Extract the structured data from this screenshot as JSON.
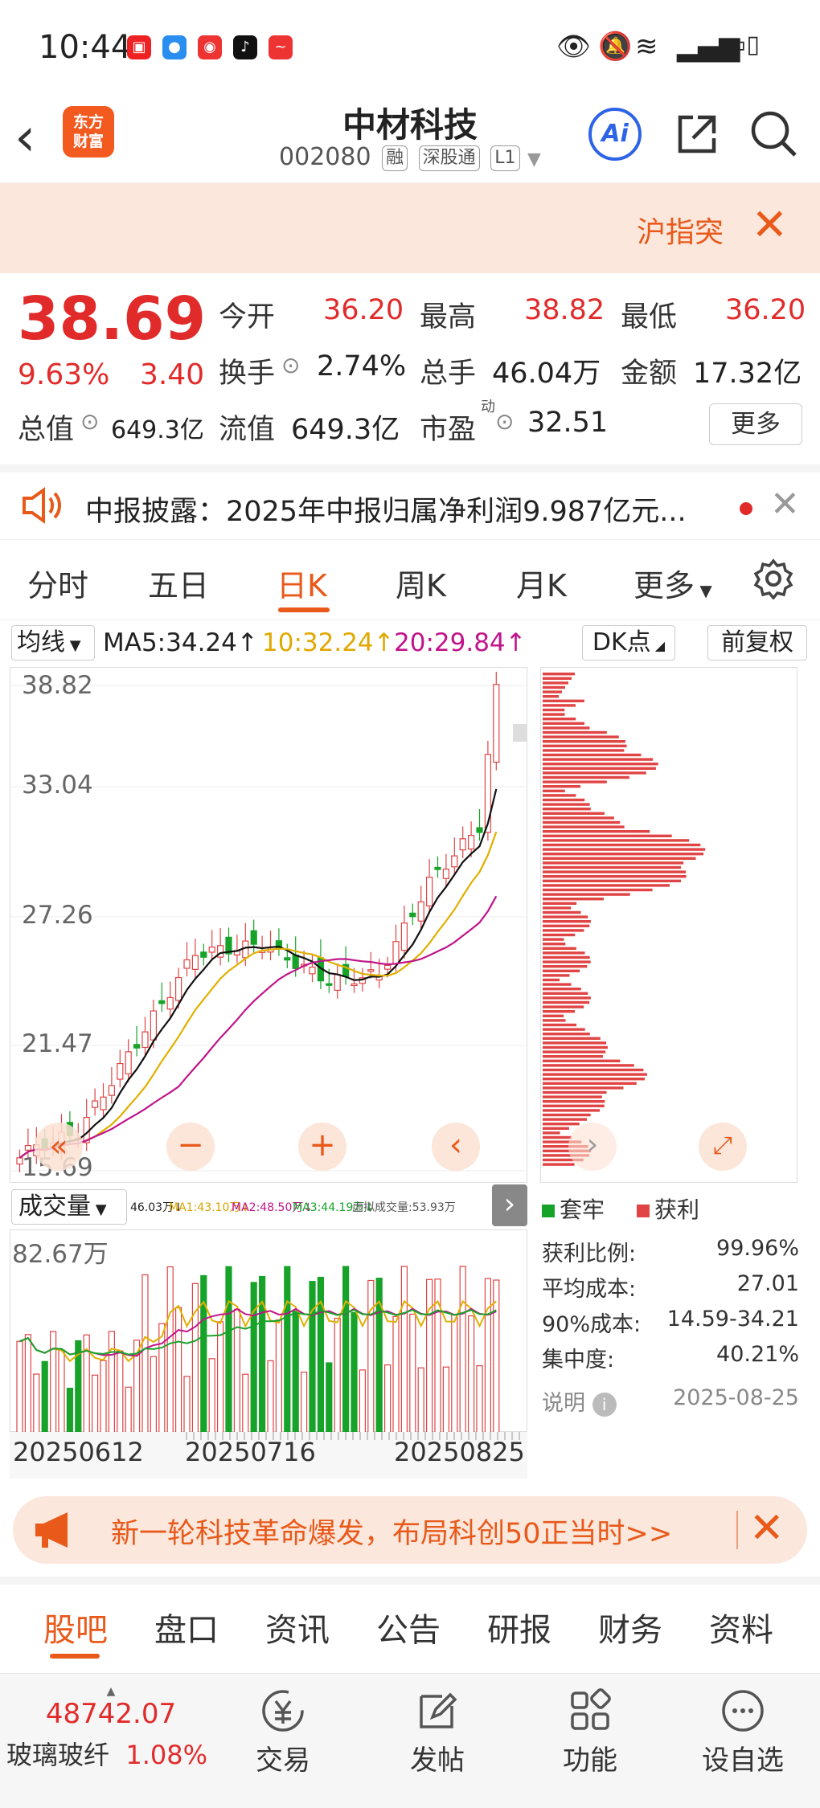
{
  "status": {
    "time": "10:44",
    "apps": [
      "#e22",
      "#2a8ef0",
      "#e33",
      "#111",
      "#e33"
    ]
  },
  "header": {
    "logo_line1": "东方",
    "logo_line2": "财富",
    "name": "中材科技",
    "code": "002080",
    "tags": [
      "融",
      "深股通",
      "L1"
    ],
    "ai_label": "Ai"
  },
  "notice": {
    "text": "沪指突"
  },
  "quote": {
    "price": "38.69",
    "pct": "9.63%",
    "chg": "3.40",
    "open_label": "今开",
    "open": "36.20",
    "high_label": "最高",
    "high": "38.82",
    "low_label": "最低",
    "low": "36.20",
    "turnover_label": "换手",
    "turnover": "2.74%",
    "volume_label": "总手",
    "volume": "46.04万",
    "amount_label": "金额",
    "amount": "17.32亿",
    "mcap_label": "总值",
    "mcap": "649.3亿",
    "float_label": "流值",
    "float": "649.3亿",
    "pe_label": "市盈",
    "pe_sup": "动",
    "pe": "32.51",
    "more_label": "更多"
  },
  "ticker": {
    "text": "中报披露：2025年中报归属净利润9.987亿元..."
  },
  "ktabs": [
    "分时",
    "五日",
    "日K",
    "周K",
    "月K",
    "更多"
  ],
  "ktab_active": 2,
  "ma": {
    "select": "均线",
    "ma5": "MA5:34.24↑",
    "ma10": "10:32.24↑",
    "ma20": "20:29.84↑",
    "dk": "DK点",
    "fq": "前复权"
  },
  "kchart": {
    "y_labels": [
      "38.82",
      "33.04",
      "27.26",
      "21.47",
      "15.69"
    ]
  },
  "vol": {
    "select": "成交量",
    "info": [
      {
        "text": "46.03万↓",
        "color": "#222"
      },
      {
        "text": "MA1:43.10万↓",
        "color": "#d9a400"
      },
      {
        "text": "MA2:48.50万↓",
        "color": "#c0148a"
      },
      {
        "text": "MA3:44.19万↓",
        "color": "#17a32a"
      },
      {
        "text": "虚拟成交量:53.93万",
        "color": "#555"
      }
    ],
    "y_label": "82.67万",
    "dates": [
      "20250612",
      "20250716",
      "20250825"
    ]
  },
  "chip": {
    "legend_trapped": "套牢",
    "legend_profit": "获利",
    "stats": [
      {
        "label": "获利比例:",
        "value": "99.96%"
      },
      {
        "label": "平均成本:",
        "value": "27.01"
      },
      {
        "label": "90%成本:",
        "value": "14.59-34.21"
      },
      {
        "label": "集中度:",
        "value": "40.21%"
      }
    ],
    "note_label": "说明",
    "date": "2025-08-25"
  },
  "promo": {
    "text": "新一轮科技革命爆发，布局科创50正当时>>"
  },
  "btabs": [
    "股吧",
    "盘口",
    "资讯",
    "公告",
    "研报",
    "财务",
    "资料"
  ],
  "btab_active": 0,
  "nav": {
    "index_value": "48742.07",
    "index_name": "玻璃玻纤",
    "index_pct": "1.08%",
    "items": [
      "交易",
      "发帖",
      "功能",
      "设自选"
    ]
  }
}
